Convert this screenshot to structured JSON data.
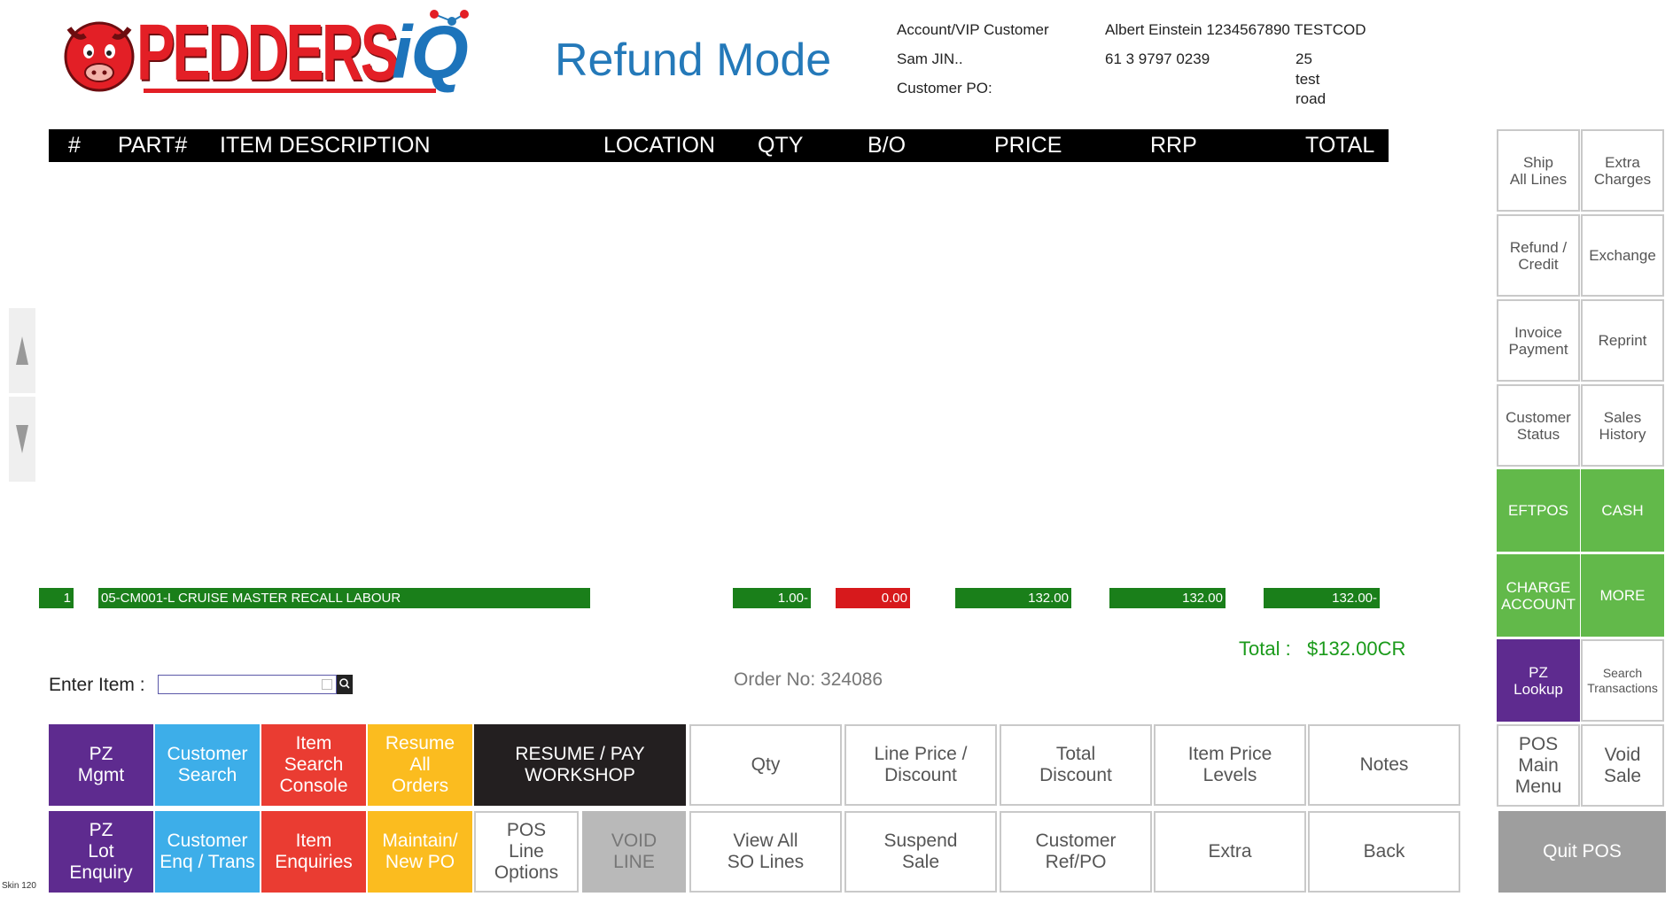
{
  "header": {
    "logo_text": "PEDDERS",
    "logo_iq": "iQ",
    "mode_title": "Refund Mode",
    "account": {
      "label_customer": "Account/VIP Customer",
      "customer_value": "Albert Einstein 1234567890 TESTCOD",
      "label_user": "Sam JIN..",
      "phone": "61 3 9797 0239",
      "address_line1": "25",
      "address_line2": "test",
      "address_line3": "road",
      "label_po": "Customer PO:"
    }
  },
  "table": {
    "columns": [
      "#",
      "PART#",
      "ITEM DESCRIPTION",
      "LOCATION",
      "QTY",
      "B/O",
      "PRICE",
      "RRP",
      "TOTAL"
    ],
    "rows": [
      {
        "num": "1",
        "description": "05-CM001-L CRUISE MASTER RECALL LABOUR",
        "qty": "1.00-",
        "bo": "0.00",
        "price": "132.00",
        "rrp": "132.00",
        "total": "132.00-"
      }
    ]
  },
  "totals": {
    "label": "Total :",
    "value": "$132.00CR"
  },
  "entry": {
    "label": "Enter Item :",
    "value": "",
    "order_no": "Order No: 324086"
  },
  "side_panel": {
    "ship_all": "Ship\nAll Lines",
    "extra_charges": "Extra\nCharges",
    "refund_credit": "Refund /\nCredit",
    "exchange": "Exchange",
    "invoice_payment": "Invoice\nPayment",
    "reprint": "Reprint",
    "customer_status": "Customer\nStatus",
    "sales_history": "Sales\nHistory",
    "eftpos": "EFTPOS",
    "cash": "CASH",
    "charge_account": "CHARGE\nACCOUNT",
    "more": "MORE",
    "pz_lookup": "PZ\nLookup",
    "search_transactions": "Search\nTransactions",
    "pos_main_menu": "POS\nMain\nMenu",
    "void_sale": "Void\nSale",
    "quit_pos": "Quit POS"
  },
  "bottom_buttons": {
    "pz_mgmt": "PZ\nMgmt",
    "customer_search": "Customer\nSearch",
    "item_search_console": "Item\nSearch\nConsole",
    "resume_all_orders": "Resume\nAll\nOrders",
    "resume_pay_workshop": "RESUME / PAY\nWORKSHOP",
    "qty": "Qty",
    "line_price_discount": "Line Price /\nDiscount",
    "total_discount": "Total\nDiscount",
    "item_price_levels": "Item Price\nLevels",
    "notes": "Notes",
    "pz_lot_enquiry": "PZ\nLot\nEnquiry",
    "customer_enq_trans": "Customer\nEnq / Trans",
    "item_enquiries": "Item\nEnquiries",
    "maintain_new_po": "Maintain/\nNew PO",
    "pos_line_options": "POS\nLine\nOptions",
    "void_line": "VOID\nLINE",
    "view_all_so_lines": "View All\nSO Lines",
    "suspend_sale": "Suspend\nSale",
    "customer_ref_po": "Customer\nRef/PO",
    "extra": "Extra",
    "back": "Back"
  },
  "footer": {
    "skin": "Skin 120"
  }
}
